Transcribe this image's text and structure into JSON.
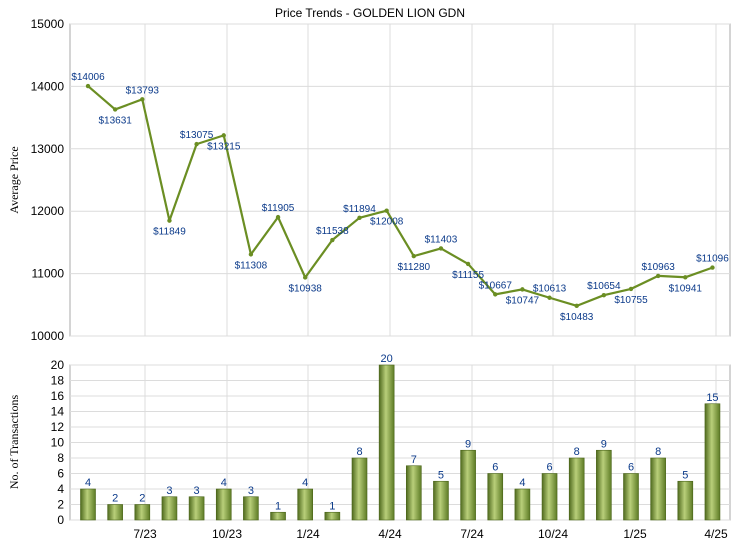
{
  "chart_data": [
    {
      "type": "line",
      "title": "Price Trends - GOLDEN LION GDN",
      "ylabel": "Average Price",
      "ylim": [
        10000,
        15000
      ],
      "yticks": [
        10000,
        11000,
        12000,
        13000,
        14000,
        15000
      ],
      "grid": true,
      "line_color": "#6b8e23",
      "label_color": "#0b3a8a",
      "series": [
        {
          "values": [
            14006,
            13631,
            13793,
            11849,
            13075,
            13215,
            11308,
            11905,
            10938,
            11538,
            11894,
            12008,
            11280,
            11403,
            11155,
            10667,
            10747,
            10613,
            10483,
            10654,
            10755,
            10963,
            10941,
            11096
          ],
          "labels": [
            "$14006",
            "$13631",
            "$13793",
            "$11849",
            "$13075",
            "$13215",
            "$11308",
            "$11905",
            "$10938",
            "$11538",
            "$11894",
            "$12008",
            "$11280",
            "$11403",
            "$11155",
            "$10667",
            "$10747",
            "$10613",
            "$10483",
            "$10654",
            "$10755",
            "$10963",
            "$10941",
            "$11096"
          ]
        }
      ]
    },
    {
      "type": "bar",
      "ylabel": "No. of Transactions",
      "ylim": [
        0,
        20
      ],
      "yticks": [
        0,
        2,
        4,
        6,
        8,
        10,
        12,
        14,
        16,
        18,
        20
      ],
      "grid": true,
      "bar_color": "#7f9a3a",
      "label_color": "#0b3a8a",
      "series": [
        {
          "values": [
            4,
            2,
            2,
            3,
            3,
            4,
            3,
            1,
            4,
            1,
            8,
            20,
            7,
            5,
            9,
            6,
            4,
            6,
            8,
            9,
            6,
            8,
            5,
            15
          ]
        }
      ],
      "xtick_labels": [
        "7/23",
        "10/23",
        "1/24",
        "4/24",
        "7/24",
        "10/24",
        "1/25",
        "4/25"
      ]
    }
  ]
}
